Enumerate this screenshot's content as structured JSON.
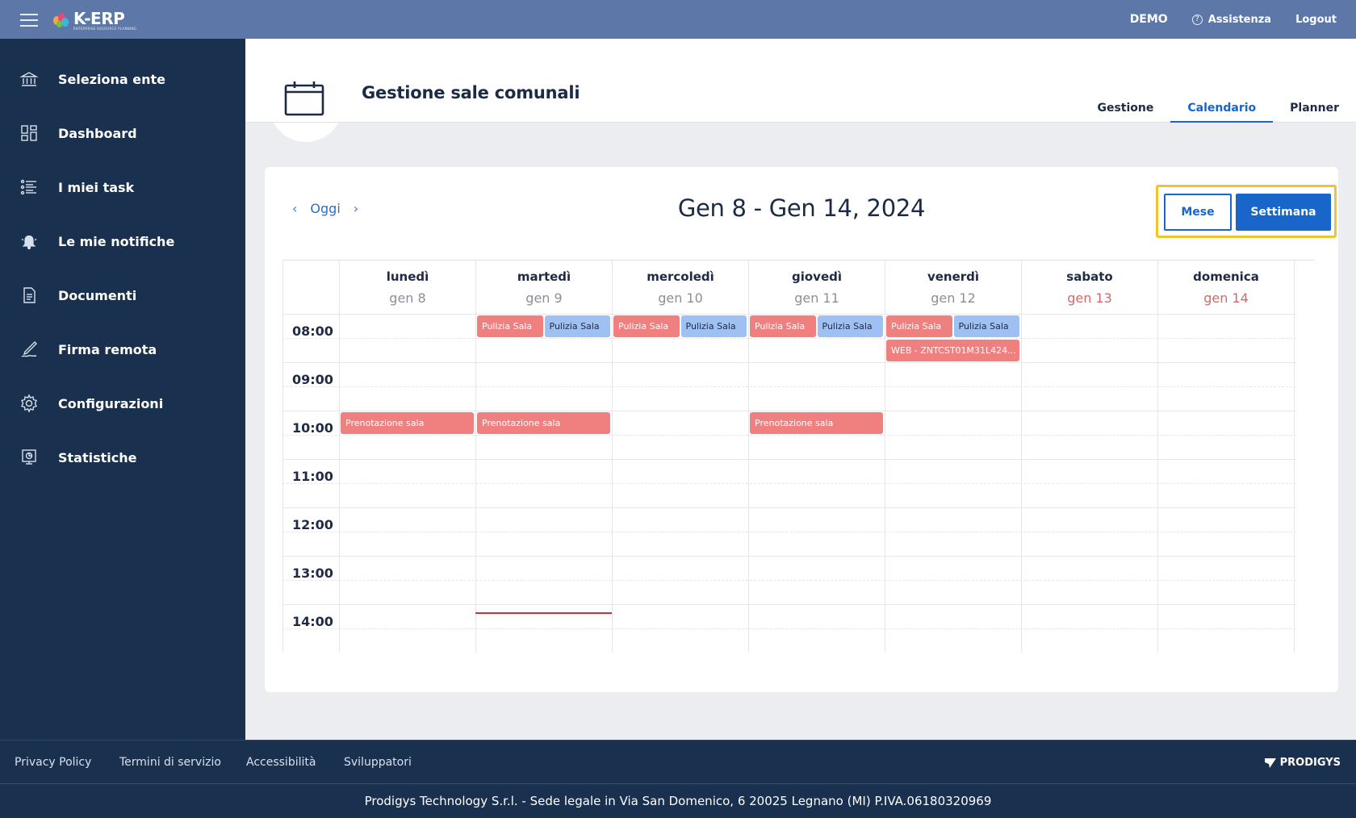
{
  "header": {
    "logo_text": "K-ERP",
    "logo_subtitle": "ENTERPRISE RESOURCE PLANNING",
    "environment": "DEMO",
    "help_label": "Assistenza",
    "logout_label": "Logout"
  },
  "sidebar": {
    "items": [
      {
        "label": "Seleziona ente",
        "icon": "bank-icon"
      },
      {
        "label": "Dashboard",
        "icon": "dashboard-icon"
      },
      {
        "label": "I miei task",
        "icon": "task-list-icon"
      },
      {
        "label": "Le mie notifiche",
        "icon": "bell-icon"
      },
      {
        "label": "Documenti",
        "icon": "document-icon"
      },
      {
        "label": "Firma remota",
        "icon": "pen-icon"
      },
      {
        "label": "Configurazioni",
        "icon": "gear-icon"
      },
      {
        "label": "Statistiche",
        "icon": "presentation-icon"
      }
    ]
  },
  "page": {
    "title": "Gestione sale comunali",
    "tabs": [
      {
        "label": "Gestione",
        "active": false
      },
      {
        "label": "Calendario",
        "active": true
      },
      {
        "label": "Planner",
        "active": false
      }
    ]
  },
  "calendar": {
    "prev_label": "‹",
    "today_label": "Oggi",
    "next_label": "›",
    "range_title": "Gen 8 - Gen 14, 2024",
    "view_buttons": {
      "month": "Mese",
      "week": "Settimana",
      "active": "week"
    },
    "days": [
      {
        "name": "lunedì",
        "date": "gen 8",
        "weekend": false
      },
      {
        "name": "martedì",
        "date": "gen 9",
        "weekend": false
      },
      {
        "name": "mercoledì",
        "date": "gen 10",
        "weekend": false
      },
      {
        "name": "giovedì",
        "date": "gen 11",
        "weekend": false
      },
      {
        "name": "venerdì",
        "date": "gen 12",
        "weekend": false
      },
      {
        "name": "sabato",
        "date": "gen 13",
        "weekend": true
      },
      {
        "name": "domenica",
        "date": "gen 14",
        "weekend": true
      }
    ],
    "times": [
      "08:00",
      "09:00",
      "10:00",
      "11:00",
      "12:00",
      "13:00",
      "14:00"
    ],
    "events": [
      {
        "day": 1,
        "start": "08:00",
        "title": "Pulizia Sala",
        "color": "red",
        "half": 0
      },
      {
        "day": 1,
        "start": "08:00",
        "title": "Pulizia Sala",
        "color": "blue",
        "half": 1
      },
      {
        "day": 2,
        "start": "08:00",
        "title": "Pulizia Sala",
        "color": "red",
        "half": 0
      },
      {
        "day": 2,
        "start": "08:00",
        "title": "Pulizia Sala",
        "color": "blue",
        "half": 1
      },
      {
        "day": 3,
        "start": "08:00",
        "title": "Pulizia Sala",
        "color": "red",
        "half": 0
      },
      {
        "day": 3,
        "start": "08:00",
        "title": "Pulizia Sala",
        "color": "blue",
        "half": 1
      },
      {
        "day": 4,
        "start": "08:00",
        "title": "Pulizia Sala",
        "color": "red",
        "half": 0
      },
      {
        "day": 4,
        "start": "08:00",
        "title": "Pulizia Sala",
        "color": "blue",
        "half": 1
      },
      {
        "day": 4,
        "start": "08:30",
        "title": "WEB - ZNTCST01M31L424...",
        "color": "red",
        "half": -1
      },
      {
        "day": 0,
        "start": "10:00",
        "title": "Prenotazione sala",
        "color": "red",
        "half": -1
      },
      {
        "day": 1,
        "start": "10:00",
        "title": "Prenotazione sala",
        "color": "red",
        "half": -1
      },
      {
        "day": 3,
        "start": "10:00",
        "title": "Prenotazione sala",
        "color": "red",
        "half": -1
      }
    ],
    "now_indicator": {
      "day": 1,
      "time": "14:10"
    }
  },
  "colors": {
    "accent": "#1866c9",
    "event_red": "#f08080",
    "event_blue": "#9ec0f2",
    "highlight": "#f2c230",
    "sidebar": "#19304e",
    "header": "#5d77a9"
  },
  "footer": {
    "links": [
      "Privacy Policy",
      "Termini di servizio",
      "Accessibilità",
      "Sviluppatori"
    ],
    "brand": "PRODIGYS",
    "legal": "Prodigys Technology S.r.l. - Sede legale in Via San Domenico, 6 20025 Legnano (MI) P.IVA.06180320969"
  }
}
